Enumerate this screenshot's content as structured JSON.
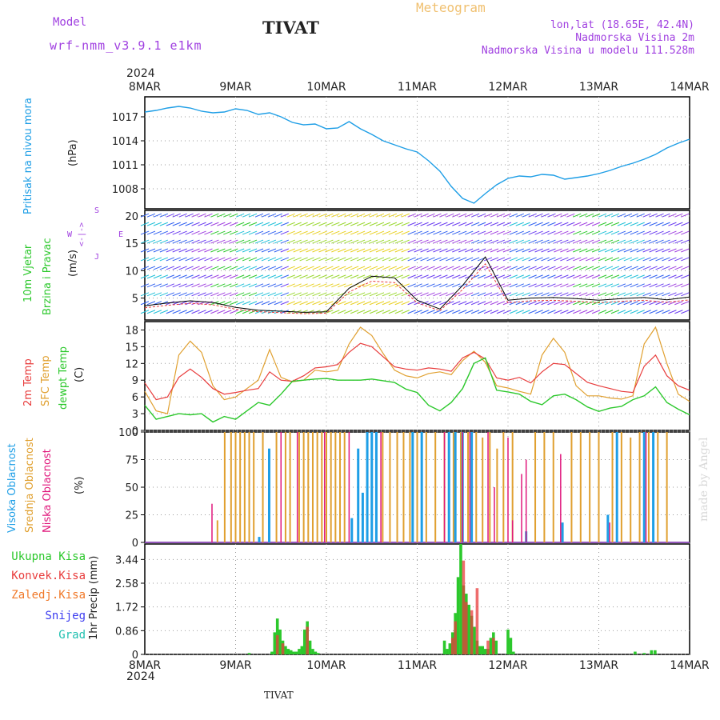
{
  "header": {
    "model_label": "Model",
    "model_name": "wrf-nmm_v3.9.1 e1km",
    "station": "TIVAT",
    "meteogram": "Meteogram",
    "lonlat": "lon,lat (18.65E, 42.4N)",
    "elevation": "Nadmorska Visina 2m",
    "model_elevation": "Nadmorska Visina u modelu 111.528m",
    "footer_station": "TIVAT",
    "watermark": "made by Angel"
  },
  "colors": {
    "pressure": "#1e9ee6",
    "temp2m": "#e83c3c",
    "sfctemp": "#e0a030",
    "dewpt": "#2cc82c",
    "high_cloud": "#1e9ee6",
    "mid_cloud": "#e0a030",
    "low_cloud": "#e0187c",
    "total_precip": "#2cc82c",
    "conv_precip": "#e83c3c",
    "frozen_precip": "#f07828",
    "snow": "#3c3cf0",
    "graupel": "#20c0b0",
    "purple_text": "#a040e0",
    "title_orange": "#f0c070"
  },
  "time_axis": {
    "year": "2024",
    "labels": [
      "8MAR",
      "9MAR",
      "10MAR",
      "11MAR",
      "12MAR",
      "13MAR",
      "14MAR"
    ]
  },
  "chart_data": [
    {
      "type": "line",
      "panel": "pressure",
      "ylabel_1": "Pritisak na nivou mora",
      "ylabel_2": "(hPa)",
      "yticks": [
        "1017",
        "1014",
        "1011",
        "1008"
      ],
      "ylim": [
        1005.5,
        1019.5
      ],
      "x_days": [
        0,
        0.125,
        0.25,
        0.375,
        0.5,
        0.625,
        0.75,
        0.875,
        1.0,
        1.125,
        1.25,
        1.375,
        1.5,
        1.625,
        1.75,
        1.875,
        2.0,
        2.125,
        2.25,
        2.375,
        2.5,
        2.625,
        2.75,
        2.875,
        3.0,
        3.125,
        3.25,
        3.375,
        3.5,
        3.625,
        3.75,
        3.875,
        4.0,
        4.125,
        4.25,
        4.375,
        4.5,
        4.625,
        4.75,
        4.875,
        5.0,
        5.125,
        5.25,
        5.375,
        5.5,
        5.625,
        5.75,
        5.875,
        6.0
      ],
      "series": [
        {
          "values": [
            1017.6,
            1017.8,
            1018.1,
            1018.3,
            1018.1,
            1017.7,
            1017.5,
            1017.6,
            1018.0,
            1017.8,
            1017.3,
            1017.5,
            1017.0,
            1016.3,
            1016.0,
            1016.1,
            1015.5,
            1015.6,
            1016.4,
            1015.5,
            1014.8,
            1014.0,
            1013.5,
            1013.0,
            1012.6,
            1011.5,
            1010.2,
            1008.3,
            1006.8,
            1006.2,
            1007.4,
            1008.5,
            1009.3,
            1009.6,
            1009.5,
            1009.8,
            1009.7,
            1009.2,
            1009.4,
            1009.6,
            1009.9,
            1010.3,
            1010.8,
            1011.2,
            1011.7,
            1012.3,
            1013.1,
            1013.7,
            1014.2
          ]
        }
      ]
    },
    {
      "type": "barbs",
      "panel": "wind",
      "ylabel_1": "10m Vjetar",
      "ylabel_2": "Brzina i Pravac",
      "ylabel_3": "(m/s)",
      "compass_s": "S",
      "compass_w": "W",
      "compass_e": "E",
      "compass_j": "J",
      "yticks": [
        "20",
        "15",
        "10",
        "5"
      ],
      "ylim": [
        1,
        21
      ],
      "x_days": [
        0,
        0.25,
        0.5,
        0.75,
        1.0,
        1.25,
        1.5,
        1.75,
        2.0,
        2.25,
        2.5,
        2.75,
        3.0,
        3.25,
        3.5,
        3.75,
        4.0,
        4.25,
        4.5,
        4.75,
        5.0,
        5.25,
        5.5,
        5.75,
        6.0
      ],
      "series": [
        {
          "name": "speed",
          "values": [
            3.6,
            4.1,
            4.5,
            4.2,
            3.3,
            2.8,
            2.6,
            2.4,
            2.5,
            6.8,
            9.0,
            8.7,
            4.6,
            3.0,
            7.3,
            12.5,
            4.6,
            5.0,
            5.1,
            4.9,
            4.6,
            4.9,
            5.1,
            4.7,
            5.2
          ]
        }
      ]
    },
    {
      "type": "line",
      "panel": "temperature",
      "ylabel_1": "2m Temp",
      "ylabel_2": "SFC Temp",
      "ylabel_3": "dewpt Temp",
      "ylabel_4": "(C)",
      "yticks": [
        "18",
        "15",
        "12",
        "9",
        "6",
        "3",
        "0"
      ],
      "ylim": [
        0,
        19.5
      ],
      "x_days": [
        0,
        0.125,
        0.25,
        0.375,
        0.5,
        0.625,
        0.75,
        0.875,
        1.0,
        1.125,
        1.25,
        1.375,
        1.5,
        1.625,
        1.75,
        1.875,
        2.0,
        2.125,
        2.25,
        2.375,
        2.5,
        2.625,
        2.75,
        2.875,
        3.0,
        3.125,
        3.25,
        3.375,
        3.5,
        3.625,
        3.75,
        3.875,
        4.0,
        4.125,
        4.25,
        4.375,
        4.5,
        4.625,
        4.75,
        4.875,
        5.0,
        5.125,
        5.25,
        5.375,
        5.5,
        5.625,
        5.75,
        5.875,
        6.0
      ],
      "series": [
        {
          "name": "2m Temp",
          "values": [
            8.5,
            5.5,
            6.0,
            9.5,
            11.0,
            9.5,
            7.5,
            6.5,
            6.8,
            7.2,
            7.5,
            10.5,
            9.0,
            8.8,
            9.8,
            11.2,
            11.4,
            11.8,
            14.0,
            15.6,
            15.0,
            13.2,
            11.4,
            11.0,
            10.8,
            11.2,
            11.0,
            10.6,
            13.0,
            14.0,
            12.8,
            9.4,
            9.0,
            9.5,
            8.5,
            10.5,
            12.0,
            11.8,
            10.2,
            8.6,
            8.0,
            7.5,
            7.0,
            6.8,
            11.5,
            13.5,
            9.8,
            8.0,
            7.2
          ]
        },
        {
          "name": "SFC Temp",
          "values": [
            7.0,
            3.5,
            3.0,
            13.5,
            16.0,
            14.0,
            8.0,
            5.5,
            6.0,
            7.5,
            9.0,
            14.5,
            9.5,
            8.7,
            9.0,
            10.8,
            10.5,
            10.8,
            15.5,
            18.5,
            17.0,
            13.8,
            10.8,
            9.8,
            9.4,
            10.2,
            10.5,
            10.0,
            12.5,
            14.2,
            12.2,
            8.0,
            7.6,
            7.0,
            6.5,
            13.5,
            16.5,
            14.0,
            8.0,
            6.2,
            6.2,
            5.8,
            5.6,
            6.2,
            15.5,
            18.5,
            12.0,
            6.5,
            5.2
          ]
        },
        {
          "name": "dewpt Temp",
          "values": [
            4.5,
            2.0,
            2.5,
            3.0,
            2.8,
            3.0,
            1.5,
            2.5,
            2.0,
            3.5,
            5.0,
            4.5,
            6.5,
            8.8,
            9.0,
            9.2,
            9.3,
            9.0,
            9.0,
            9.0,
            9.2,
            8.9,
            8.6,
            7.4,
            6.8,
            4.5,
            3.5,
            5.0,
            7.5,
            12.0,
            13.0,
            7.2,
            6.9,
            6.5,
            5.2,
            4.6,
            6.2,
            6.5,
            5.5,
            4.2,
            3.4,
            4.0,
            4.3,
            5.5,
            6.2,
            7.8,
            5.0,
            3.8,
            2.8
          ]
        }
      ]
    },
    {
      "type": "bar",
      "panel": "cloud",
      "ylabel_1": "Visoka Oblacnost",
      "ylabel_2": "Srednja Oblacnost",
      "ylabel_3": "Niska Oblacnost",
      "ylabel_4": "(%)",
      "yticks": [
        "100",
        "75",
        "50",
        "25",
        "0"
      ],
      "ylim": [
        0,
        100
      ],
      "series": [
        {
          "name": "Visoka Oblacnost",
          "x_days": [
            1.26,
            1.37,
            2.28,
            2.35,
            2.4,
            2.45,
            2.5,
            2.55,
            2.95,
            3.05,
            3.35,
            3.42,
            3.5,
            3.6,
            4.2,
            4.6,
            5.1,
            5.2,
            5.5,
            5.6
          ],
          "values": [
            5,
            85,
            22,
            85,
            45,
            100,
            100,
            100,
            100,
            100,
            100,
            100,
            100,
            100,
            10,
            18,
            25,
            100,
            100,
            100
          ]
        },
        {
          "name": "Srednja Oblacnost",
          "x_days": [
            0.8,
            0.88,
            0.95,
            1.0,
            1.05,
            1.1,
            1.15,
            1.2,
            1.3,
            1.45,
            1.55,
            1.6,
            1.7,
            1.75,
            1.8,
            1.85,
            1.9,
            1.95,
            2.0,
            2.05,
            2.1,
            2.15,
            2.2,
            2.62,
            2.7,
            2.78,
            2.85,
            2.92,
            3.0,
            3.1,
            3.2,
            3.3,
            3.4,
            3.48,
            3.56,
            3.65,
            3.72,
            3.8,
            3.88,
            3.95,
            4.05,
            4.3,
            4.4,
            4.5,
            4.7,
            4.8,
            4.9,
            5.0,
            5.15,
            5.25,
            5.35,
            5.45,
            5.55,
            5.65,
            5.75
          ],
          "values": [
            20,
            100,
            100,
            100,
            100,
            100,
            100,
            100,
            100,
            100,
            100,
            100,
            100,
            100,
            100,
            100,
            100,
            100,
            100,
            100,
            100,
            100,
            100,
            100,
            100,
            100,
            100,
            100,
            100,
            100,
            100,
            100,
            100,
            100,
            100,
            100,
            95,
            100,
            85,
            100,
            100,
            100,
            100,
            100,
            100,
            100,
            100,
            100,
            100,
            100,
            95,
            100,
            100,
            100,
            100
          ]
        },
        {
          "name": "Niska Oblacnost",
          "x_days": [
            0.74,
            1.5,
            1.68,
            1.98,
            2.25,
            2.6,
            3.3,
            3.5,
            3.58,
            3.78,
            3.85,
            4.0,
            4.05,
            4.2,
            4.15,
            4.58,
            5.12,
            5.52
          ],
          "values": [
            35,
            100,
            100,
            100,
            100,
            100,
            100,
            100,
            100,
            100,
            50,
            95,
            20,
            75,
            62,
            80,
            18,
            100
          ]
        }
      ]
    },
    {
      "type": "bar",
      "panel": "precip",
      "ylabel_1": "1hr Precip (mm)",
      "legend": [
        "Ukupna Kisa",
        "Konvek.Kisa",
        "Zaledj.Kisa",
        "Snijeg",
        "Grad"
      ],
      "yticks": [
        "3.44",
        "2.58",
        "1.72",
        "0.86",
        "0"
      ],
      "ylim": [
        0,
        4.0
      ],
      "series": [
        {
          "name": "Ukupna Kisa",
          "x_days": [
            1.15,
            1.4,
            1.43,
            1.46,
            1.49,
            1.52,
            1.55,
            1.58,
            1.61,
            1.64,
            1.67,
            1.7,
            1.73,
            1.76,
            1.79,
            1.82,
            1.85,
            1.88,
            1.91,
            3.3,
            3.33,
            3.36,
            3.39,
            3.42,
            3.45,
            3.48,
            3.51,
            3.54,
            3.57,
            3.6,
            3.63,
            3.66,
            3.69,
            3.72,
            3.75,
            3.78,
            3.81,
            3.84,
            3.87,
            4.0,
            4.03,
            4.06,
            5.4,
            5.5,
            5.58,
            5.62
          ],
          "values": [
            0.05,
            0.1,
            0.8,
            1.3,
            0.9,
            0.5,
            0.3,
            0.2,
            0.15,
            0.1,
            0.1,
            0.2,
            0.3,
            0.9,
            1.2,
            0.5,
            0.2,
            0.1,
            0.05,
            0.5,
            0.2,
            0.4,
            0.8,
            1.5,
            2.8,
            4.0,
            2.5,
            2.2,
            1.8,
            1.4,
            1.0,
            0.5,
            0.3,
            0.3,
            0.2,
            0.2,
            0.6,
            0.8,
            0.5,
            0.9,
            0.6,
            0.1,
            0.1,
            0.05,
            0.15,
            0.15
          ]
        },
        {
          "name": "Konvek.Kisa",
          "x_days": [
            1.46,
            1.52,
            1.79,
            3.39,
            3.42,
            3.51,
            3.54,
            3.6,
            3.66,
            3.78,
            3.84
          ],
          "values": [
            0.7,
            0.4,
            1.0,
            0.6,
            1.2,
            3.4,
            1.9,
            1.6,
            2.4,
            0.5,
            0.6
          ]
        }
      ]
    }
  ]
}
